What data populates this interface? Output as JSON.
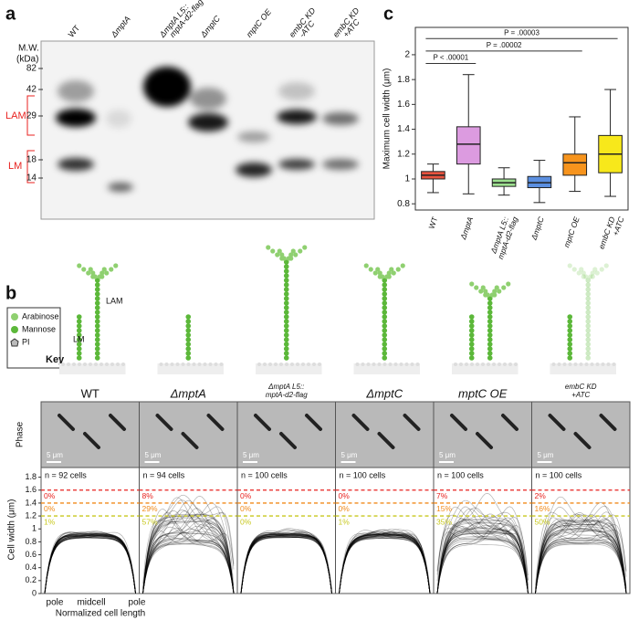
{
  "panel_a": {
    "label": "a",
    "mw_title": "M.W.",
    "mw_unit": "(kDa)",
    "markers": [
      82,
      42,
      29,
      18,
      14
    ],
    "lam_label": "LAM",
    "lm_label": "LM",
    "lanes": [
      [
        "WT"
      ],
      [
        "ΔmptA"
      ],
      [
        "ΔmptA L5::",
        "mptA-d2-flag"
      ],
      [
        "ΔmptC"
      ],
      [
        "mptC OE"
      ],
      [
        "embC KD",
        "-ATC"
      ],
      [
        "embC KD",
        "+ATC"
      ]
    ]
  },
  "chart_data": {
    "type": "box",
    "label": "c",
    "y_label": "Maximum cell width (μm)",
    "categories": [
      [
        "WT"
      ],
      [
        "ΔmptA"
      ],
      [
        "ΔmptA L5::",
        "mptA-d2-flag"
      ],
      [
        "ΔmptC"
      ],
      [
        "mptC OE"
      ],
      [
        "embC KD",
        "+ATC"
      ]
    ],
    "boxes": [
      {
        "whisker_low": 0.89,
        "q1": 1.0,
        "median": 1.03,
        "q3": 1.06,
        "whisker_high": 1.12
      },
      {
        "whisker_low": 0.88,
        "q1": 1.12,
        "median": 1.28,
        "q3": 1.42,
        "whisker_high": 1.84
      },
      {
        "whisker_low": 0.87,
        "q1": 0.94,
        "median": 0.97,
        "q3": 1.0,
        "whisker_high": 1.09
      },
      {
        "whisker_low": 0.81,
        "q1": 0.93,
        "median": 0.97,
        "q3": 1.02,
        "whisker_high": 1.15
      },
      {
        "whisker_low": 0.9,
        "q1": 1.03,
        "median": 1.13,
        "q3": 1.2,
        "whisker_high": 1.5
      },
      {
        "whisker_low": 0.86,
        "q1": 1.05,
        "median": 1.2,
        "q3": 1.35,
        "whisker_high": 1.72
      }
    ],
    "colors": [
      "#e8533f",
      "#dc9be0",
      "#9de08f",
      "#5b8fe0",
      "#f7941d",
      "#f7e81b"
    ],
    "brackets": [
      {
        "label": "P < .00001",
        "from": 0,
        "to": 1,
        "y": 1.93
      },
      {
        "label": "P = .00002",
        "from": 0,
        "to": 4,
        "y": 2.03
      },
      {
        "label": "P = .00003",
        "from": 0,
        "to": 5,
        "y": 2.13
      }
    ],
    "ylim": [
      0.75,
      2.22
    ],
    "yticks": [
      0.8,
      1.0,
      1.2,
      1.4,
      1.6,
      1.8,
      2.0
    ]
  },
  "panel_b": {
    "label": "b",
    "key": {
      "title": "Key",
      "items": [
        "Arabinose",
        "Mannose",
        "PI"
      ]
    },
    "cartoon_labels": {
      "lm": "LM",
      "lam": "LAM"
    },
    "phase_label": "Phase",
    "scale_bar": "5 μm",
    "y_label": "Cell width (μm)",
    "x_label": "Normalized cell length",
    "x_ticks": [
      "pole",
      "midcell",
      "pole"
    ],
    "ylim": [
      0,
      1.95
    ],
    "yticks": [
      0.0,
      0.2,
      0.4,
      0.6,
      0.8,
      1.0,
      1.2,
      1.4,
      1.6,
      1.8
    ],
    "thresholds": [
      {
        "value": 1.6,
        "color": "#e8221f"
      },
      {
        "value": 1.4,
        "color": "#f08a1c"
      },
      {
        "value": 1.2,
        "color": "#c8c81e"
      }
    ],
    "strains": [
      {
        "name": [
          "WT"
        ],
        "n": "n = 92 cells",
        "percent_labels": [
          "0%",
          "0%",
          "1%"
        ]
      },
      {
        "name": [
          "ΔmptA"
        ],
        "n": "n = 94 cells",
        "percent_labels": [
          "8%",
          "29%",
          "57%"
        ]
      },
      {
        "name": [
          "ΔmptA L5::",
          "mptA-d2-flag"
        ],
        "n": "n = 100 cells",
        "percent_labels": [
          "0%",
          "0%",
          "0%"
        ]
      },
      {
        "name": [
          "ΔmptC"
        ],
        "n": "n = 100 cells",
        "percent_labels": [
          "0%",
          "0%",
          "1%"
        ]
      },
      {
        "name": [
          "mptC OE"
        ],
        "n": "n = 100 cells",
        "percent_labels": [
          "7%",
          "15%",
          "35%"
        ]
      },
      {
        "name": [
          "embC KD",
          "+ATC"
        ],
        "n": "n = 100 cells",
        "percent_labels": [
          "2%",
          "16%",
          "50%"
        ]
      }
    ]
  }
}
